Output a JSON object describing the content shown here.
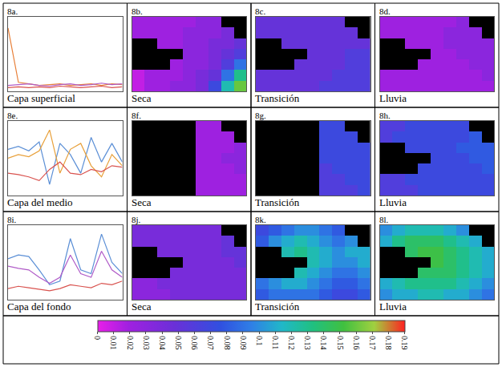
{
  "chart_data": [
    {
      "label": "8a.",
      "caption": "Capa superficial",
      "type": "line",
      "tick_labels": false,
      "grid": false,
      "x": [
        1,
        2,
        3,
        4,
        5,
        6,
        7,
        8,
        9,
        10,
        11,
        12
      ],
      "xlim": [
        1,
        12
      ],
      "ylim": [
        0,
        1
      ],
      "series": [
        {
          "color": "#e8803a",
          "values": [
            0.85,
            0.12,
            0.1,
            0.08,
            0.09,
            0.1,
            0.08,
            0.09,
            0.1,
            0.08,
            0.1,
            0.09
          ]
        },
        {
          "color": "#b05cc8",
          "values": [
            0.08,
            0.09,
            0.1,
            0.08,
            0.07,
            0.09,
            0.1,
            0.08,
            0.09,
            0.11,
            0.09,
            0.1
          ]
        },
        {
          "color": "#d9534f",
          "values": [
            0.05,
            0.06,
            0.05,
            0.06,
            0.05,
            0.07,
            0.06,
            0.05,
            0.06,
            0.07,
            0.05,
            0.06
          ]
        }
      ]
    },
    {
      "label": "8b.",
      "caption": "Seca",
      "type": "heatmap",
      "tick_labels": false,
      "z": [
        [
          0.02,
          0.02,
          0.02,
          0.02,
          0.02,
          0.03,
          0.03,
          null,
          null
        ],
        [
          0.02,
          0.02,
          0.02,
          0.02,
          0.03,
          0.03,
          0.03,
          0.04,
          null
        ],
        [
          null,
          null,
          0.02,
          0.02,
          0.03,
          0.03,
          0.04,
          0.04,
          0.05
        ],
        [
          null,
          null,
          null,
          null,
          0.03,
          0.03,
          0.04,
          0.05,
          0.06
        ],
        [
          null,
          null,
          null,
          0.02,
          0.03,
          0.03,
          0.04,
          0.06,
          0.09
        ],
        [
          0.01,
          0.02,
          0.02,
          0.02,
          0.03,
          0.04,
          0.05,
          0.09,
          0.13
        ],
        [
          0.01,
          0.02,
          0.02,
          0.03,
          0.03,
          0.04,
          0.07,
          0.12,
          0.16
        ]
      ]
    },
    {
      "label": "8c.",
      "caption": "Transición",
      "type": "heatmap",
      "tick_labels": false,
      "z": [
        [
          0.05,
          0.05,
          0.05,
          0.05,
          0.05,
          0.05,
          0.05,
          null,
          null
        ],
        [
          0.05,
          0.05,
          0.05,
          0.05,
          0.05,
          0.05,
          0.05,
          0.05,
          null
        ],
        [
          null,
          null,
          0.05,
          0.05,
          0.05,
          0.05,
          0.05,
          0.05,
          0.05
        ],
        [
          null,
          null,
          null,
          null,
          0.05,
          0.05,
          0.05,
          0.06,
          0.06
        ],
        [
          null,
          null,
          null,
          0.05,
          0.05,
          0.05,
          0.05,
          0.06,
          0.06
        ],
        [
          0.05,
          0.05,
          0.05,
          0.05,
          0.05,
          0.05,
          0.06,
          0.06,
          0.06
        ],
        [
          0.05,
          0.05,
          0.05,
          0.05,
          0.05,
          0.06,
          0.06,
          0.06,
          0.06
        ]
      ]
    },
    {
      "label": "8d.",
      "caption": "Lluvia",
      "type": "heatmap",
      "tick_labels": false,
      "z": [
        [
          0.02,
          0.02,
          0.02,
          0.02,
          0.02,
          0.02,
          0.03,
          null,
          null
        ],
        [
          0.02,
          0.02,
          0.02,
          0.02,
          0.02,
          0.03,
          0.03,
          0.03,
          null
        ],
        [
          null,
          null,
          0.02,
          0.02,
          0.02,
          0.03,
          0.03,
          0.03,
          0.03
        ],
        [
          null,
          null,
          null,
          null,
          0.02,
          0.02,
          0.03,
          0.03,
          0.03
        ],
        [
          null,
          null,
          null,
          0.02,
          0.02,
          0.02,
          0.02,
          0.03,
          0.03
        ],
        [
          0.02,
          0.02,
          0.02,
          0.02,
          0.02,
          0.02,
          0.02,
          0.02,
          0.03
        ],
        [
          0.02,
          0.02,
          0.02,
          0.02,
          0.02,
          0.02,
          0.02,
          0.02,
          0.02
        ]
      ]
    },
    {
      "label": "8e.",
      "caption": "Capa del medio",
      "type": "line",
      "tick_labels": false,
      "grid": false,
      "x": [
        1,
        2,
        3,
        4,
        5,
        6,
        7,
        8,
        9,
        10,
        11,
        12
      ],
      "xlim": [
        1,
        12
      ],
      "ylim": [
        0,
        1
      ],
      "series": [
        {
          "color": "#5b8fd6",
          "values": [
            0.62,
            0.66,
            0.6,
            0.72,
            0.15,
            0.7,
            0.55,
            0.3,
            0.78,
            0.45,
            0.7,
            0.45
          ]
        },
        {
          "color": "#e8a03a",
          "values": [
            0.5,
            0.55,
            0.52,
            0.6,
            0.88,
            0.3,
            0.62,
            0.7,
            0.4,
            0.25,
            0.55,
            0.4
          ]
        },
        {
          "color": "#d9534f",
          "values": [
            0.3,
            0.28,
            0.25,
            0.2,
            0.35,
            0.45,
            0.3,
            0.28,
            0.35,
            0.32,
            0.4,
            0.38
          ]
        }
      ]
    },
    {
      "label": "8f.",
      "caption": "Seca",
      "type": "heatmap",
      "tick_labels": false,
      "z": [
        [
          null,
          null,
          null,
          null,
          null,
          0.02,
          0.02,
          null,
          null
        ],
        [
          null,
          null,
          null,
          null,
          null,
          0.02,
          0.02,
          0.02,
          null
        ],
        [
          null,
          null,
          null,
          null,
          null,
          0.02,
          0.02,
          0.02,
          0.03
        ],
        [
          null,
          null,
          null,
          null,
          null,
          0.02,
          0.02,
          0.03,
          0.03
        ],
        [
          null,
          null,
          null,
          null,
          null,
          0.02,
          0.02,
          0.02,
          0.03
        ],
        [
          null,
          null,
          null,
          null,
          null,
          0.02,
          0.02,
          0.02,
          0.02
        ],
        [
          null,
          null,
          null,
          null,
          null,
          0.02,
          0.02,
          0.02,
          0.02
        ]
      ]
    },
    {
      "label": "8g.",
      "caption": "Transición",
      "type": "heatmap",
      "tick_labels": false,
      "z": [
        [
          null,
          null,
          null,
          null,
          null,
          0.07,
          0.07,
          null,
          null
        ],
        [
          null,
          null,
          null,
          null,
          null,
          0.07,
          0.07,
          0.07,
          null
        ],
        [
          null,
          null,
          null,
          null,
          null,
          0.07,
          0.07,
          0.07,
          0.07
        ],
        [
          null,
          null,
          null,
          null,
          null,
          0.07,
          0.07,
          0.07,
          0.07
        ],
        [
          null,
          null,
          null,
          null,
          null,
          0.06,
          0.07,
          0.07,
          0.07
        ],
        [
          null,
          null,
          null,
          null,
          null,
          0.06,
          0.06,
          0.07,
          0.07
        ],
        [
          null,
          null,
          null,
          null,
          null,
          0.06,
          0.06,
          0.06,
          0.07
        ]
      ]
    },
    {
      "label": "8h.",
      "caption": "Lluvia",
      "type": "heatmap",
      "tick_labels": false,
      "z": [
        [
          0.06,
          0.06,
          0.07,
          0.07,
          0.07,
          0.07,
          0.07,
          null,
          null
        ],
        [
          0.06,
          0.07,
          0.07,
          0.07,
          0.07,
          0.07,
          0.07,
          0.08,
          null
        ],
        [
          null,
          null,
          0.07,
          0.07,
          0.07,
          0.07,
          0.08,
          0.08,
          0.08
        ],
        [
          null,
          null,
          null,
          null,
          0.07,
          0.07,
          0.07,
          0.08,
          0.08
        ],
        [
          null,
          null,
          null,
          0.07,
          0.07,
          0.07,
          0.07,
          0.07,
          0.08
        ],
        [
          0.06,
          0.06,
          0.07,
          0.07,
          0.07,
          0.07,
          0.07,
          0.07,
          0.07
        ],
        [
          0.06,
          0.06,
          0.06,
          0.07,
          0.07,
          0.07,
          0.07,
          0.07,
          0.07
        ]
      ]
    },
    {
      "label": "8i.",
      "caption": "Capa del fondo",
      "type": "line",
      "tick_labels": false,
      "grid": false,
      "x": [
        1,
        2,
        3,
        4,
        5,
        6,
        7,
        8,
        9,
        10,
        11,
        12
      ],
      "xlim": [
        1,
        12
      ],
      "ylim": [
        0,
        1
      ],
      "series": [
        {
          "color": "#5b8fd6",
          "values": [
            0.55,
            0.6,
            0.58,
            0.4,
            0.2,
            0.25,
            0.82,
            0.4,
            0.35,
            0.88,
            0.5,
            0.35
          ]
        },
        {
          "color": "#b05cc8",
          "values": [
            0.45,
            0.42,
            0.4,
            0.3,
            0.22,
            0.3,
            0.6,
            0.35,
            0.3,
            0.65,
            0.4,
            0.3
          ]
        },
        {
          "color": "#d9534f",
          "values": [
            0.15,
            0.18,
            0.16,
            0.14,
            0.12,
            0.15,
            0.2,
            0.18,
            0.16,
            0.22,
            0.2,
            0.25
          ]
        }
      ]
    },
    {
      "label": "8j.",
      "caption": "Seca",
      "type": "heatmap",
      "tick_labels": false,
      "z": [
        [
          0.04,
          0.04,
          0.04,
          0.04,
          0.04,
          0.04,
          0.04,
          null,
          null
        ],
        [
          0.04,
          0.04,
          0.04,
          0.04,
          0.04,
          0.04,
          0.04,
          0.05,
          null
        ],
        [
          null,
          null,
          0.04,
          0.04,
          0.04,
          0.04,
          0.04,
          0.05,
          0.05
        ],
        [
          null,
          null,
          null,
          null,
          0.04,
          0.04,
          0.04,
          0.04,
          0.05
        ],
        [
          null,
          null,
          null,
          0.04,
          0.04,
          0.04,
          0.04,
          0.04,
          0.04
        ],
        [
          0.03,
          0.03,
          0.04,
          0.04,
          0.04,
          0.04,
          0.04,
          0.04,
          0.04
        ],
        [
          0.03,
          0.03,
          0.03,
          0.04,
          0.04,
          0.04,
          0.04,
          0.04,
          0.04
        ]
      ]
    },
    {
      "label": "8k.",
      "caption": "Transición",
      "type": "heatmap",
      "tick_labels": false,
      "z": [
        [
          0.07,
          0.08,
          0.09,
          0.1,
          0.1,
          0.09,
          0.08,
          null,
          null
        ],
        [
          0.08,
          0.1,
          0.11,
          0.12,
          0.11,
          0.1,
          0.09,
          0.1,
          null
        ],
        [
          null,
          null,
          0.12,
          0.13,
          0.12,
          0.11,
          0.1,
          0.11,
          0.11
        ],
        [
          null,
          null,
          null,
          null,
          0.12,
          0.11,
          0.1,
          0.1,
          0.11
        ],
        [
          null,
          null,
          null,
          0.12,
          0.11,
          0.1,
          0.09,
          0.09,
          0.1
        ],
        [
          0.09,
          0.1,
          0.11,
          0.11,
          0.1,
          0.09,
          0.08,
          0.08,
          0.09
        ],
        [
          0.08,
          0.09,
          0.09,
          0.09,
          0.09,
          0.08,
          0.07,
          0.07,
          0.08
        ]
      ]
    },
    {
      "label": "8l.",
      "caption": "Lluvia",
      "type": "heatmap",
      "tick_labels": false,
      "z": [
        [
          0.1,
          0.11,
          0.12,
          0.12,
          0.12,
          0.11,
          0.1,
          null,
          null
        ],
        [
          0.11,
          0.13,
          0.14,
          0.14,
          0.14,
          0.13,
          0.12,
          0.11,
          null
        ],
        [
          null,
          null,
          0.14,
          0.15,
          0.15,
          0.14,
          0.13,
          0.12,
          0.11
        ],
        [
          null,
          null,
          null,
          null,
          0.15,
          0.14,
          0.13,
          0.12,
          0.11
        ],
        [
          null,
          null,
          null,
          0.14,
          0.14,
          0.14,
          0.13,
          0.12,
          0.11
        ],
        [
          0.11,
          0.12,
          0.13,
          0.13,
          0.13,
          0.13,
          0.12,
          0.11,
          0.1
        ],
        [
          0.1,
          0.11,
          0.11,
          0.12,
          0.12,
          0.11,
          0.11,
          0.1,
          0.09
        ]
      ]
    }
  ],
  "colorbar": {
    "range": [
      0,
      0.19
    ],
    "ticks": [
      0,
      0.01,
      0.02,
      0.03,
      0.04,
      0.05,
      0.06,
      0.07,
      0.08,
      0.09,
      0.1,
      0.11,
      0.12,
      0.13,
      0.14,
      0.15,
      0.16,
      0.17,
      0.18,
      0.19
    ]
  }
}
